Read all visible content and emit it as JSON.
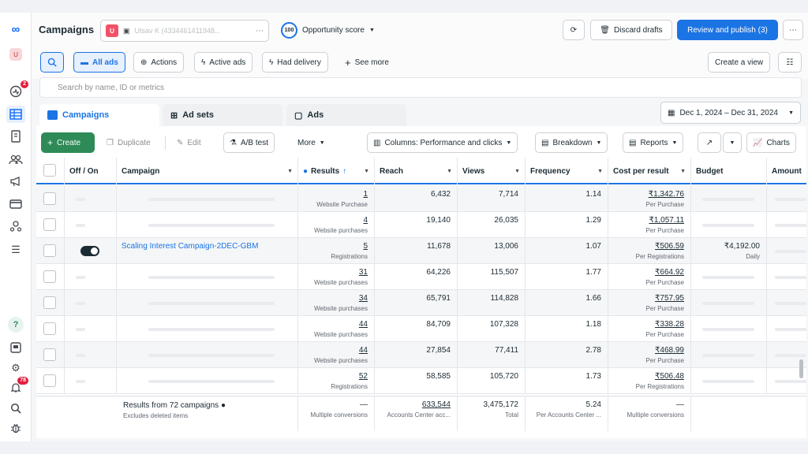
{
  "rail": {
    "avatar_letter": "U",
    "notif_badge": "2",
    "alerts_badge": "78",
    "icons": [
      "meta-logo-icon",
      "avatar",
      "activity-icon",
      "campaigns-grid-icon",
      "pages-icon",
      "audiences-icon",
      "ads-megaphone-icon",
      "billing-card-icon",
      "accounts-center-icon",
      "menu-icon",
      "help-icon",
      "news-icon",
      "settings-icon",
      "notifications-icon",
      "search-icon",
      "bug-icon"
    ]
  },
  "header": {
    "title": "Campaigns",
    "account_letter": "U",
    "account_name": "Utsav K (4334461411948...",
    "opportunity_score": "100",
    "opportunity_label": "Opportunity score",
    "discard_label": "Discard drafts",
    "publish_label": "Review and publish (3)"
  },
  "filters": {
    "all_ads": "All ads",
    "actions": "Actions",
    "active_ads": "Active ads",
    "had_delivery": "Had delivery",
    "see_more": "See more",
    "create_view": "Create a view"
  },
  "search": {
    "placeholder": "Search by name, ID or metrics"
  },
  "tabs": {
    "campaigns": "Campaigns",
    "ad_sets": "Ad sets",
    "ads": "Ads"
  },
  "date_range": "Dec 1, 2024 – Dec 31, 2024",
  "action_bar": {
    "create": "Create",
    "duplicate": "Duplicate",
    "edit": "Edit",
    "ab_test": "A/B test",
    "more": "More",
    "columns": "Columns: Performance and clicks",
    "breakdown": "Breakdown",
    "reports": "Reports",
    "charts": "Charts"
  },
  "columns": [
    "Off / On",
    "Campaign",
    "Results",
    "Reach",
    "Views",
    "Frequency",
    "Cost per result",
    "Budget",
    "Amount"
  ],
  "rows": [
    {
      "name": "",
      "results": "1",
      "results_sub": "Website Purchase",
      "reach": "6,432",
      "views": "7,714",
      "frequency": "1.14",
      "cpr": "₹1,342.76",
      "cpr_sub": "Per Purchase",
      "budget": "",
      "budget_sub": ""
    },
    {
      "name": "",
      "results": "4",
      "results_sub": "Website purchases",
      "reach": "19,140",
      "views": "26,035",
      "frequency": "1.29",
      "cpr": "₹1,057.11",
      "cpr_sub": "Per Purchase",
      "budget": "",
      "budget_sub": ""
    },
    {
      "name": "Scaling Interest Campaign-2DEC-GBM",
      "results": "5",
      "results_sub": "Registrations",
      "reach": "11,678",
      "views": "13,006",
      "frequency": "1.07",
      "cpr": "₹506.59",
      "cpr_sub": "Per Registrations",
      "budget": "₹4,192.00",
      "budget_sub": "Daily"
    },
    {
      "name": "",
      "results": "31",
      "results_sub": "Website purchases",
      "reach": "64,226",
      "views": "115,507",
      "frequency": "1.77",
      "cpr": "₹664.92",
      "cpr_sub": "Per Purchase",
      "budget": "",
      "budget_sub": ""
    },
    {
      "name": "",
      "results": "34",
      "results_sub": "Website purchases",
      "reach": "65,791",
      "views": "114,828",
      "frequency": "1.66",
      "cpr": "₹757.95",
      "cpr_sub": "Per Purchase",
      "budget": "",
      "budget_sub": ""
    },
    {
      "name": "",
      "results": "44",
      "results_sub": "Website purchases",
      "reach": "84,709",
      "views": "107,328",
      "frequency": "1.18",
      "cpr": "₹338.28",
      "cpr_sub": "Per Purchase",
      "budget": "",
      "budget_sub": ""
    },
    {
      "name": "",
      "results": "44",
      "results_sub": "Website purchases",
      "reach": "27,854",
      "views": "77,411",
      "frequency": "2.78",
      "cpr": "₹468.99",
      "cpr_sub": "Per Purchase",
      "budget": "",
      "budget_sub": ""
    },
    {
      "name": "",
      "results": "52",
      "results_sub": "Registrations",
      "reach": "58,585",
      "views": "105,720",
      "frequency": "1.73",
      "cpr": "₹506.48",
      "cpr_sub": "Per Registrations",
      "budget": "",
      "budget_sub": ""
    }
  ],
  "footer": {
    "summary": "Results from 72 campaigns",
    "excludes": "Excludes deleted items",
    "results": "—",
    "results_sub": "Multiple conversions",
    "reach": "633,544",
    "reach_sub": "Accounts Center acc...",
    "views": "3,475,172",
    "views_sub": "Total",
    "frequency": "5.24",
    "frequency_sub": "Per Accounts Center ...",
    "cpr": "—",
    "cpr_sub": "Multiple conversions"
  }
}
